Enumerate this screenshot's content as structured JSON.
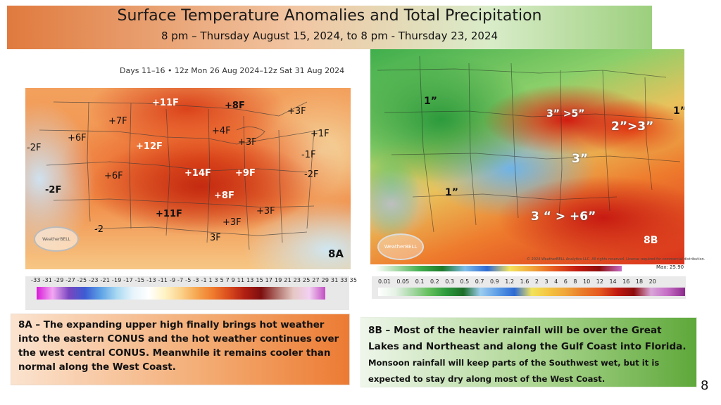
{
  "header": {
    "title": "Surface Temperature Anomalies and Total Precipitation",
    "subtitle": "8 pm – Thursday  August 15, 2024, to  8 pm - Thursday 23, 2024"
  },
  "panel_a": {
    "days_header": "Days 11–16 • 12z Mon 26 Aug 2024–12z Sat 31 Aug 2024",
    "tag": "8A",
    "logo_text": "WeatherBELL",
    "anomalies": [
      {
        "text": "+11F",
        "style": "white"
      },
      {
        "text": "+8F",
        "style": "dark"
      },
      {
        "text": "+3F",
        "style": "dark"
      },
      {
        "text": "+7F",
        "style": "dark"
      },
      {
        "text": "+6F",
        "style": "dark"
      },
      {
        "text": "+4F",
        "style": "dark"
      },
      {
        "text": "+1F",
        "style": "dark"
      },
      {
        "text": "-2F",
        "style": "dark"
      },
      {
        "text": "+12F",
        "style": "white"
      },
      {
        "text": "+3F",
        "style": "dark"
      },
      {
        "text": "-1F",
        "style": "dark"
      },
      {
        "text": "+14F",
        "style": "white"
      },
      {
        "text": "+9F",
        "style": "white"
      },
      {
        "text": "-2F",
        "style": "dark"
      },
      {
        "text": "+6F",
        "style": "dark"
      },
      {
        "text": "-2F",
        "style": "dark"
      },
      {
        "text": "+8F",
        "style": "white"
      },
      {
        "text": "+11F",
        "style": "dark"
      },
      {
        "text": "+3F",
        "style": "dark"
      },
      {
        "text": "+3F",
        "style": "dark"
      },
      {
        "text": "-2",
        "style": "dark"
      },
      {
        "text": "3F",
        "style": "dark"
      }
    ],
    "scale_ticks": "-33 -31 -29 -27 -25 -23 -21 -19 -17 -15 -13 -11 -9 -7 -5 -3 -1 1 3 5 7 9 11 13 15 17 19 21 23 25 27 29 31 33 35"
  },
  "panel_b": {
    "tag": "8B",
    "logo_text": "WeatherBELL",
    "copyright": "© 2024 WeatherBELL Analytics LLC. All rights reserved. License required for commercial distribution.",
    "max_label": "Max: 25.90",
    "precip_labels": [
      {
        "text": "1”",
        "style": "dark"
      },
      {
        "text": "3” >5”",
        "style": "white"
      },
      {
        "text": "1”",
        "style": "dark"
      },
      {
        "text": "2”>3”",
        "style": "big"
      },
      {
        "text": "3”",
        "style": "big"
      },
      {
        "text": "1”",
        "style": "dark"
      },
      {
        "text": "3 “ > +6”",
        "style": "big"
      }
    ],
    "scale_ticks": "0.01 0.05 0.1 0.2 0.3 0.5 0.7 0.9 1.2 1.6 2 3 4 6 8 10 12 14 16 18 20"
  },
  "captions": {
    "a": "8A – The expanding upper high finally brings hot weather into the eastern CONUS and the hot weather continues over the west central CONUS.  Meanwhile it remains cooler than normal along the West Coast.",
    "b_main": "8B – Most of the heavier rainfall will be over the Great Lakes and Northeast and along the Gulf Coast  into Florida.",
    "b_small": " Monsoon rainfall will keep  parts of the Southwest wet, but it is expected to stay dry along most of the West Coast."
  },
  "page_number": "8"
}
